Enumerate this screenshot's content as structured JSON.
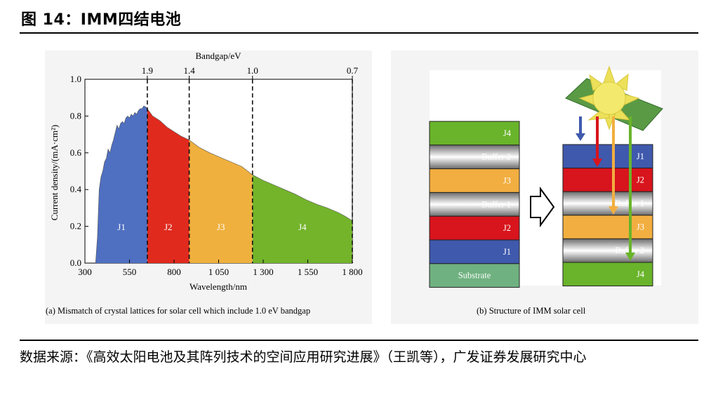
{
  "figure": {
    "title": "图 14：IMM四结电池",
    "source": "数据来源：《高效太阳电池及其阵列技术的空间应用研究进展》（王凯等），广发证券发展研究中心"
  },
  "chart_data": {
    "type": "area",
    "title": "",
    "xlabel": "Wavelength/nm",
    "ylabel": "Current density/(mA·cm²)",
    "top_axis_label": "Bandgap/eV",
    "x_ticks": [
      "300",
      "550",
      "800",
      "1 050",
      "1 300",
      "1 550",
      "1 800"
    ],
    "y_ticks": [
      "0.0",
      "0.2",
      "0.4",
      "0.6",
      "0.8",
      "1.0"
    ],
    "xlim": [
      300,
      1800
    ],
    "ylim": [
      0,
      1.0
    ],
    "bandgaps": [
      {
        "label": "1.9",
        "x": 650
      },
      {
        "label": "1.4",
        "x": 885
      },
      {
        "label": "1.0",
        "x": 1240
      },
      {
        "label": "0.7",
        "x": 1800
      }
    ],
    "series": [
      {
        "name": "J1",
        "color": "#4f6fc1",
        "x_range": [
          360,
          650
        ]
      },
      {
        "name": "J2",
        "color": "#e02a1e",
        "x_range": [
          650,
          885
        ]
      },
      {
        "name": "J3",
        "color": "#efb03e",
        "x_range": [
          885,
          1240
        ]
      },
      {
        "name": "J4",
        "color": "#73b42b",
        "x_range": [
          1240,
          1800
        ]
      }
    ],
    "curve": {
      "x": [
        360,
        370,
        380,
        390,
        400,
        410,
        420,
        430,
        440,
        450,
        460,
        470,
        480,
        490,
        500,
        510,
        520,
        530,
        540,
        550,
        560,
        570,
        580,
        590,
        600,
        610,
        620,
        630,
        640,
        650,
        680,
        720,
        760,
        800,
        840,
        885,
        940,
        1000,
        1060,
        1120,
        1180,
        1240,
        1300,
        1360,
        1420,
        1480,
        1540,
        1600,
        1660,
        1720,
        1760,
        1800
      ],
      "y": [
        0.0,
        0.14,
        0.4,
        0.47,
        0.5,
        0.55,
        0.57,
        0.62,
        0.6,
        0.64,
        0.67,
        0.71,
        0.75,
        0.73,
        0.76,
        0.77,
        0.76,
        0.79,
        0.8,
        0.79,
        0.81,
        0.8,
        0.82,
        0.81,
        0.83,
        0.84,
        0.84,
        0.855,
        0.85,
        0.84,
        0.8,
        0.775,
        0.74,
        0.715,
        0.69,
        0.67,
        0.63,
        0.6,
        0.575,
        0.55,
        0.525,
        0.48,
        0.45,
        0.425,
        0.4,
        0.375,
        0.345,
        0.32,
        0.3,
        0.275,
        0.255,
        0.23
      ]
    },
    "caption": "(a) Mismatch of crystal lattices for solar cell which include 1.0 eV bandgap"
  },
  "diagram": {
    "caption": "(b) Structure of IMM solar cell",
    "left_stack": [
      "J4",
      "Buffer 2",
      "J3",
      "Buffer 1",
      "J2",
      "J1",
      "Substrate"
    ],
    "right_stack": [
      "J1",
      "J2",
      "Buffer 1",
      "J3",
      "Buffer 2",
      "J4"
    ],
    "colors": {
      "J1": "#3f59ad",
      "J2": "#d8141d",
      "J3": "#f2ae40",
      "J4": "#69b42a",
      "Substrate": "#6fb180",
      "Buffer": "#8a8a8a"
    }
  }
}
